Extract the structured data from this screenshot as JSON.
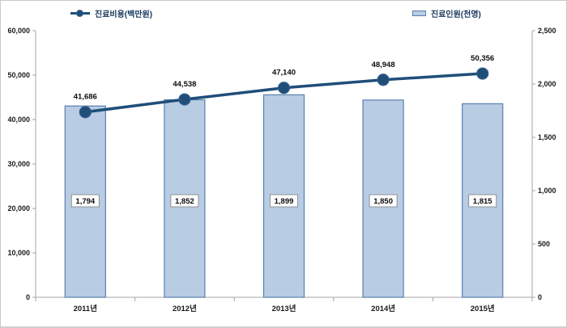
{
  "chart_data": {
    "type": "combo-bar-line",
    "title": "",
    "categories": [
      "2011년",
      "2012년",
      "2013년",
      "2014년",
      "2015년"
    ],
    "series": [
      {
        "name": "진료비용(백만원)",
        "type": "line",
        "axis": "left",
        "values": [
          41686,
          44538,
          47140,
          48948,
          50356
        ],
        "labels": [
          "41,686",
          "44,538",
          "47,140",
          "48,948",
          "50,356"
        ],
        "color": "#1f4e79"
      },
      {
        "name": "진료인원(천명)",
        "type": "bar",
        "axis": "right",
        "values": [
          1794,
          1852,
          1899,
          1850,
          1815
        ],
        "labels": [
          "1,794",
          "1,852",
          "1,899",
          "1,850",
          "1,815"
        ],
        "fill": "#b8cce4",
        "stroke": "#5a7fae"
      }
    ],
    "left_axis": {
      "min": 0,
      "max": 60000,
      "step": 10000,
      "ticks": [
        "0",
        "10,000",
        "20,000",
        "30,000",
        "40,000",
        "50,000",
        "60,000"
      ]
    },
    "right_axis": {
      "min": 0,
      "max": 2500,
      "step": 500,
      "ticks": [
        "0",
        "500",
        "1,000",
        "1,500",
        "2,000",
        "2,500"
      ]
    },
    "grid": false,
    "legend_position": "top",
    "colors": {
      "axis_line": "#a6a6a6",
      "tick_text": "#1a1a1a",
      "data_label_text": "#0d0d0d",
      "bar_label_box_fill": "#ffffff",
      "bar_label_box_stroke": "#7f7f7f"
    }
  },
  "legend": {
    "line_label": "진료비용(백만원)",
    "bar_label": "진료인원(천명)"
  }
}
